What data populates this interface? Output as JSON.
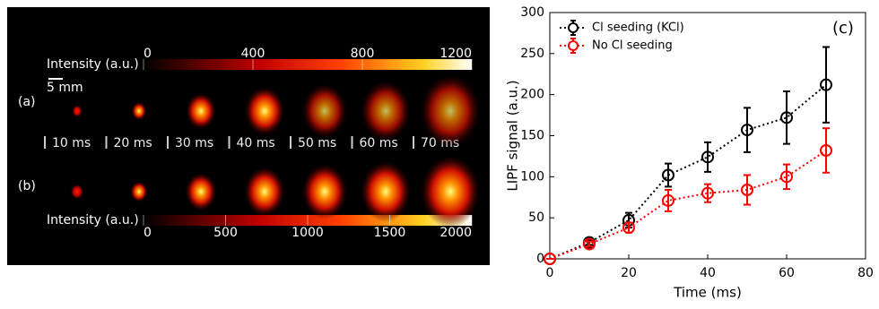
{
  "image_panel": {
    "row_labels": [
      "(a)",
      "(b)"
    ],
    "scale_bar": "5 mm",
    "time_labels": [
      "10 ms",
      "20 ms",
      "30 ms",
      "40 ms",
      "50 ms",
      "60 ms",
      "70 ms"
    ],
    "colorbar_top": {
      "label": "Intensity (a.u.)",
      "lim": [
        0,
        1200
      ],
      "ticks": [
        0,
        400,
        800,
        1200
      ]
    },
    "colorbar_bottom": {
      "label": "Intensity (a.u.)",
      "lim": [
        0,
        2000
      ],
      "ticks": [
        0,
        500,
        1000,
        1500,
        2000
      ]
    }
  },
  "chart_data": {
    "type": "line",
    "annotation": "(c)",
    "x_label": "Time (ms)",
    "y_label": "LIPF signal (a.u.)",
    "x": [
      0,
      10,
      20,
      30,
      40,
      50,
      60,
      70
    ],
    "xlim": [
      0,
      80
    ],
    "xticks": [
      0,
      20,
      40,
      60,
      80
    ],
    "ylim": [
      0,
      300
    ],
    "yticks": [
      0,
      50,
      100,
      150,
      200,
      250,
      300
    ],
    "legend": "upper left",
    "linestyle": "dotted",
    "marker": "circle",
    "series": [
      {
        "name": "Cl seeding (KCl)",
        "color": "#000000",
        "values": [
          0,
          20,
          47,
          102,
          124,
          157,
          172,
          212
        ],
        "errors": [
          0,
          3,
          9,
          14,
          18,
          27,
          32,
          46
        ]
      },
      {
        "name": "No Cl seeding",
        "color": "#ff0000",
        "values": [
          0,
          18,
          38,
          71,
          80,
          84,
          100,
          132
        ],
        "errors": [
          0,
          3,
          6,
          13,
          11,
          18,
          15,
          27
        ]
      }
    ]
  }
}
